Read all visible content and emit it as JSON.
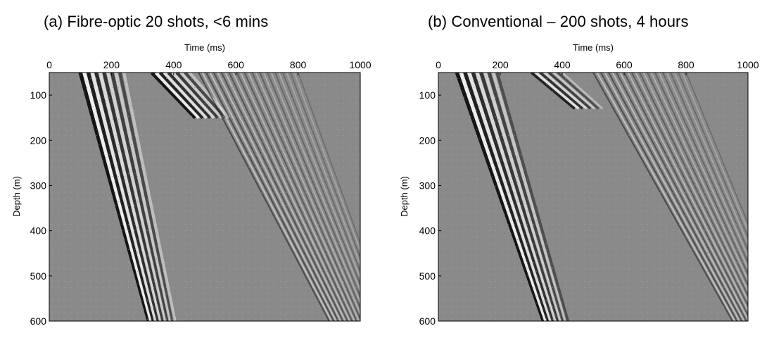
{
  "chart_data": [
    {
      "type": "heatmap",
      "title": "(a) Fibre-optic 20 shots, <6 mins",
      "xlabel": "Time (ms)",
      "ylabel": "Depth (m)",
      "x_ticks": [
        "0",
        "200",
        "400",
        "600",
        "800",
        "1000"
      ],
      "y_ticks": [
        "100",
        "200",
        "300",
        "400",
        "500",
        "600"
      ],
      "xlim": [
        0,
        1000
      ],
      "ylim": [
        600,
        50
      ],
      "x_axis_position": "top",
      "y_axis_inverted": true,
      "background_color": "#8a8a8a",
      "wavefronts": [
        {
          "name": "",
          "kind": "direct-downgoing",
          "t_at_top": 100,
          "t_at_bottom": 320,
          "band_ms": 140,
          "amplitude": 1.0
        },
        {
          "name": "",
          "kind": "tube-wave-upgoing",
          "t_at_top": 330,
          "t_at_bottom": 470,
          "depth_end": 150,
          "band_ms": 120,
          "amplitude": 1.0
        },
        {
          "name": "",
          "kind": "reflections-upgoing",
          "t_at_top": 480,
          "t_at_bottom": 900,
          "band_ms": 320,
          "amplitude": 0.35
        }
      ]
    },
    {
      "type": "heatmap",
      "title": "(b) Conventional – 200 shots, 4 hours",
      "xlabel": "Time (ms)",
      "ylabel": "Depth (m)",
      "x_ticks": [
        "0",
        "200",
        "400",
        "600",
        "800",
        "1000"
      ],
      "y_ticks": [
        "100",
        "200",
        "300",
        "400",
        "500",
        "600"
      ],
      "xlim": [
        0,
        1000
      ],
      "ylim": [
        600,
        50
      ],
      "x_axis_position": "top",
      "y_axis_inverted": true,
      "background_color": "#8a8a8a",
      "wavefronts": [
        {
          "name": "",
          "kind": "direct-downgoing",
          "t_at_top": 60,
          "t_at_bottom": 340,
          "band_ms": 130,
          "amplitude": 1.0
        },
        {
          "name": "",
          "kind": "tube-wave-upgoing",
          "t_at_top": 300,
          "t_at_bottom": 440,
          "depth_end": 130,
          "band_ms": 100,
          "amplitude": 0.85
        },
        {
          "name": "",
          "kind": "reflections-upgoing",
          "t_at_top": 500,
          "t_at_bottom": 950,
          "band_ms": 300,
          "amplitude": 0.35
        }
      ]
    }
  ]
}
